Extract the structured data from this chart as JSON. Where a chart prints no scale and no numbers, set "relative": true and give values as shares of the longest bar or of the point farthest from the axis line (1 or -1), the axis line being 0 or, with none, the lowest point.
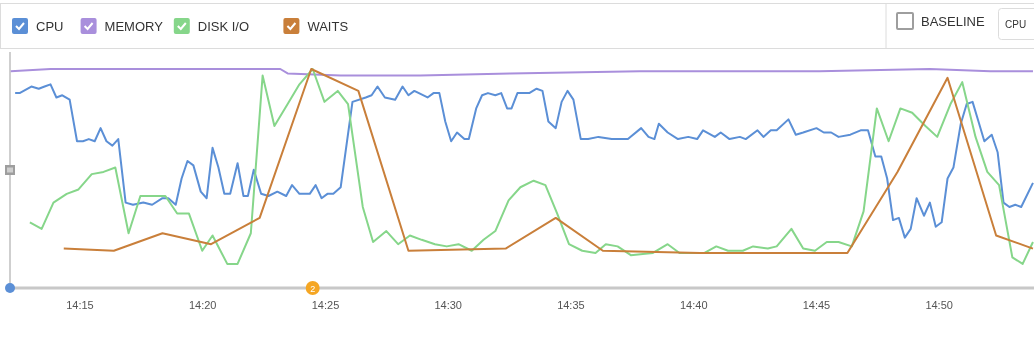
{
  "chart_data": {
    "type": "line",
    "relative": true,
    "legend": "top left",
    "marker": "none",
    "line_style": "solid",
    "xlim": [
      14.2025,
      14.8977
    ],
    "xticks": [
      {
        "value": 14.25,
        "label": "14:15"
      },
      {
        "value": 14.3333,
        "label": "14:20"
      },
      {
        "value": 14.4167,
        "label": "14:25"
      },
      {
        "value": 14.5,
        "label": "14:30"
      },
      {
        "value": 14.5833,
        "label": "14:35"
      },
      {
        "value": 14.6667,
        "label": "14:40"
      },
      {
        "value": 14.75,
        "label": "14:45"
      },
      {
        "value": 14.8333,
        "label": "14:50"
      }
    ],
    "annotations": [
      "BASELINE",
      "CPU",
      {
        "text": "2",
        "x": 14.408
      }
    ],
    "series": [
      {
        "name": "CPU",
        "color": "#5b8fd6",
        "x": [
          14.206,
          14.209,
          14.217,
          14.222,
          14.226,
          14.23,
          14.234,
          14.238,
          14.243,
          14.248,
          14.252,
          14.256,
          14.26,
          14.264,
          14.268,
          14.272,
          14.276,
          14.281,
          14.286,
          14.293,
          14.299,
          14.306,
          14.31,
          14.315,
          14.319,
          14.323,
          14.327,
          14.332,
          14.336,
          14.34,
          14.344,
          14.348,
          14.352,
          14.357,
          14.361,
          14.364,
          14.368,
          14.373,
          14.378,
          14.384,
          14.39,
          14.394,
          14.399,
          14.406,
          14.41,
          14.414,
          14.418,
          14.422,
          14.427,
          14.435,
          14.444,
          14.448,
          14.452,
          14.457,
          14.464,
          14.469,
          14.473,
          14.477,
          14.486,
          14.49,
          14.494,
          14.498,
          14.502,
          14.506,
          14.511,
          14.514,
          14.519,
          14.523,
          14.527,
          14.532,
          14.536,
          14.54,
          14.543,
          14.547,
          14.555,
          14.56,
          14.564,
          14.568,
          14.573,
          14.577,
          14.581,
          14.585,
          14.59,
          14.595,
          14.602,
          14.611,
          14.615,
          14.622,
          14.631,
          14.636,
          14.64,
          14.643,
          14.649,
          14.656,
          14.663,
          14.669,
          14.673,
          14.681,
          14.685,
          14.691,
          14.698,
          14.702,
          14.71,
          14.714,
          14.719,
          14.723,
          14.731,
          14.736,
          14.741,
          14.75,
          14.755,
          14.76,
          14.765,
          14.773,
          14.78,
          14.785,
          14.79,
          14.794,
          14.798,
          14.802,
          14.806,
          14.81,
          14.814,
          14.818,
          14.823,
          14.827,
          14.831,
          14.835,
          14.839,
          14.843,
          14.848,
          14.852,
          14.856,
          14.86,
          14.864,
          14.869,
          14.873,
          14.877,
          14.881,
          14.885,
          14.889,
          14.897
        ],
        "values": [
          0.89,
          0.89,
          0.92,
          0.91,
          0.92,
          0.93,
          0.87,
          0.88,
          0.86,
          0.67,
          0.67,
          0.68,
          0.67,
          0.73,
          0.67,
          0.65,
          0.68,
          0.39,
          0.38,
          0.39,
          0.38,
          0.41,
          0.41,
          0.38,
          0.5,
          0.58,
          0.56,
          0.44,
          0.41,
          0.64,
          0.55,
          0.43,
          0.43,
          0.57,
          0.42,
          0.42,
          0.54,
          0.43,
          0.42,
          0.44,
          0.42,
          0.47,
          0.43,
          0.43,
          0.47,
          0.41,
          0.43,
          0.43,
          0.46,
          0.85,
          0.87,
          0.88,
          0.92,
          0.87,
          0.86,
          0.92,
          0.88,
          0.9,
          0.87,
          0.89,
          0.89,
          0.76,
          0.67,
          0.71,
          0.68,
          0.68,
          0.82,
          0.88,
          0.89,
          0.88,
          0.89,
          0.82,
          0.82,
          0.89,
          0.89,
          0.91,
          0.9,
          0.76,
          0.73,
          0.85,
          0.9,
          0.86,
          0.68,
          0.68,
          0.69,
          0.68,
          0.68,
          0.68,
          0.73,
          0.69,
          0.68,
          0.75,
          0.71,
          0.68,
          0.69,
          0.68,
          0.72,
          0.69,
          0.71,
          0.68,
          0.69,
          0.68,
          0.72,
          0.69,
          0.72,
          0.72,
          0.77,
          0.7,
          0.71,
          0.73,
          0.71,
          0.71,
          0.69,
          0.7,
          0.72,
          0.72,
          0.6,
          0.6,
          0.5,
          0.31,
          0.32,
          0.23,
          0.27,
          0.41,
          0.33,
          0.39,
          0.28,
          0.3,
          0.5,
          0.55,
          0.75,
          0.84,
          0.85,
          0.76,
          0.67,
          0.7,
          0.62,
          0.39,
          0.37,
          0.38,
          0.37,
          0.48
        ]
      },
      {
        "name": "MEMORY",
        "color": "#a98fdc",
        "x": [
          14.203,
          14.23,
          14.264,
          14.386,
          14.391,
          14.427,
          14.481,
          14.542,
          14.63,
          14.752,
          14.827,
          14.868,
          14.897
        ],
        "values": [
          0.99,
          1.0,
          1.0,
          1.0,
          0.98,
          0.97,
          0.97,
          0.98,
          0.99,
          0.99,
          1.0,
          0.99,
          0.99
        ]
      },
      {
        "name": "DISK I/O",
        "color": "#86d68a",
        "x": [
          14.216,
          14.224,
          14.232,
          14.241,
          14.249,
          14.258,
          14.266,
          14.274,
          14.283,
          14.291,
          14.308,
          14.316,
          14.324,
          14.333,
          14.34,
          14.35,
          14.357,
          14.366,
          14.374,
          14.382,
          14.391,
          14.399,
          14.408,
          14.416,
          14.425,
          14.432,
          14.442,
          14.449,
          14.458,
          14.466,
          14.474,
          14.482,
          14.491,
          14.499,
          14.507,
          14.516,
          14.524,
          14.532,
          14.541,
          14.549,
          14.558,
          14.566,
          14.574,
          14.582,
          14.591,
          14.6,
          14.607,
          14.615,
          14.624,
          14.639,
          14.649,
          14.657,
          14.674,
          14.682,
          14.69,
          14.7,
          14.707,
          14.717,
          14.723,
          14.733,
          14.741,
          14.749,
          14.757,
          14.765,
          14.774,
          14.782,
          14.791,
          14.799,
          14.807,
          14.815,
          14.824,
          14.832,
          14.841,
          14.849,
          14.858,
          14.866,
          14.874,
          14.883,
          14.89,
          14.897
        ],
        "values": [
          0.3,
          0.27,
          0.39,
          0.43,
          0.45,
          0.52,
          0.53,
          0.55,
          0.25,
          0.42,
          0.42,
          0.34,
          0.34,
          0.17,
          0.24,
          0.11,
          0.11,
          0.25,
          0.97,
          0.74,
          0.84,
          0.93,
          1.0,
          0.85,
          0.9,
          0.84,
          0.37,
          0.21,
          0.26,
          0.2,
          0.24,
          0.22,
          0.2,
          0.19,
          0.2,
          0.17,
          0.22,
          0.26,
          0.4,
          0.46,
          0.49,
          0.47,
          0.34,
          0.2,
          0.17,
          0.16,
          0.2,
          0.19,
          0.15,
          0.16,
          0.2,
          0.16,
          0.16,
          0.19,
          0.17,
          0.17,
          0.19,
          0.18,
          0.19,
          0.27,
          0.18,
          0.17,
          0.21,
          0.21,
          0.19,
          0.35,
          0.82,
          0.67,
          0.82,
          0.8,
          0.74,
          0.69,
          0.84,
          0.94,
          0.69,
          0.53,
          0.47,
          0.14,
          0.11,
          0.21
        ]
      },
      {
        "name": "WAITS",
        "color": "#c97f3a",
        "x": [
          14.239,
          14.273,
          14.306,
          14.339,
          14.372,
          14.407,
          14.439,
          14.473,
          14.539,
          14.573,
          14.605,
          14.671,
          14.771,
          14.805,
          14.839,
          14.872,
          14.897
        ],
        "values": [
          0.18,
          0.17,
          0.25,
          0.2,
          0.32,
          1.0,
          0.9,
          0.17,
          0.18,
          0.32,
          0.17,
          0.16,
          0.16,
          0.53,
          0.96,
          0.24,
          0.18
        ]
      }
    ]
  }
}
